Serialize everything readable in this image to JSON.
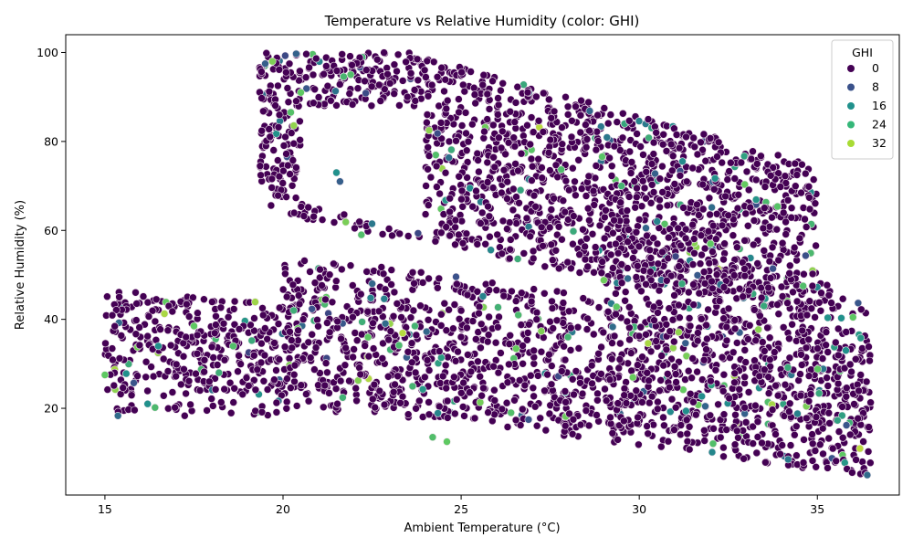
{
  "chart_data": {
    "type": "scatter",
    "title": "Temperature vs Relative Humidity (color: GHI)",
    "xlabel": "Ambient Temperature (°C)",
    "ylabel": "Relative Humidity (%)",
    "xlim": [
      13.9,
      37.3
    ],
    "ylim": [
      0.5,
      104
    ],
    "xticks": [
      15,
      20,
      25,
      30,
      35
    ],
    "yticks": [
      20,
      40,
      60,
      80,
      100
    ],
    "grid": false,
    "legend": {
      "title": "GHI",
      "placement": "top-right",
      "entries": [
        {
          "label": "0",
          "color": "#440154"
        },
        {
          "label": "8",
          "color": "#3b528b"
        },
        {
          "label": "16",
          "color": "#21918c"
        },
        {
          "label": "24",
          "color": "#35b779"
        },
        {
          "label": "32",
          "color": "#a8db34"
        }
      ]
    },
    "point_edge_color": "#f2e6ee",
    "point_radius": 4,
    "colormap": "viridis",
    "ghi_range": [
      0,
      40
    ],
    "series_description_points": [
      {
        "x": 15.0,
        "y": 27.5,
        "ghi": 30
      },
      {
        "x": 15.6,
        "y": 27.8,
        "ghi": 20
      },
      {
        "x": 16.2,
        "y": 21.0,
        "ghi": 20
      },
      {
        "x": 16.5,
        "y": 34.0,
        "ghi": 20
      },
      {
        "x": 17.5,
        "y": 38.5,
        "ghi": 30
      },
      {
        "x": 18.2,
        "y": 28.0,
        "ghi": 25
      },
      {
        "x": 18.6,
        "y": 34.0,
        "ghi": 28
      },
      {
        "x": 19.5,
        "y": 97.5,
        "ghi": 12
      },
      {
        "x": 19.7,
        "y": 98.0,
        "ghi": 32
      },
      {
        "x": 19.9,
        "y": 86.0,
        "ghi": 0
      },
      {
        "x": 20.3,
        "y": 42.0,
        "ghi": 25
      },
      {
        "x": 20.5,
        "y": 91.0,
        "ghi": 30
      },
      {
        "x": 21.5,
        "y": 73.0,
        "ghi": 20
      },
      {
        "x": 21.6,
        "y": 71.0,
        "ghi": 12
      },
      {
        "x": 21.9,
        "y": 95.0,
        "ghi": 28
      },
      {
        "x": 22.2,
        "y": 59.0,
        "ghi": 28
      },
      {
        "x": 22.5,
        "y": 61.5,
        "ghi": 16
      },
      {
        "x": 23.7,
        "y": 38.5,
        "ghi": 26
      },
      {
        "x": 24.1,
        "y": 82.5,
        "ghi": 33
      },
      {
        "x": 24.2,
        "y": 13.5,
        "ghi": 28
      },
      {
        "x": 24.6,
        "y": 12.5,
        "ghi": 30
      },
      {
        "x": 26.4,
        "y": 19.0,
        "ghi": 28
      },
      {
        "x": 28.0,
        "y": 36.0,
        "ghi": 26
      },
      {
        "x": 29.5,
        "y": 70.0,
        "ghi": 26
      },
      {
        "x": 30.5,
        "y": 62.0,
        "ghi": 18
      },
      {
        "x": 31.2,
        "y": 48.0,
        "ghi": 24
      },
      {
        "x": 32.0,
        "y": 57.0,
        "ghi": 30
      },
      {
        "x": 33.5,
        "y": 43.0,
        "ghi": 24
      },
      {
        "x": 34.6,
        "y": 47.5,
        "ghi": 28
      },
      {
        "x": 35.8,
        "y": 33.0,
        "ghi": 20
      },
      {
        "x": 36.4,
        "y": 5.0,
        "ghi": 14
      }
    ]
  }
}
